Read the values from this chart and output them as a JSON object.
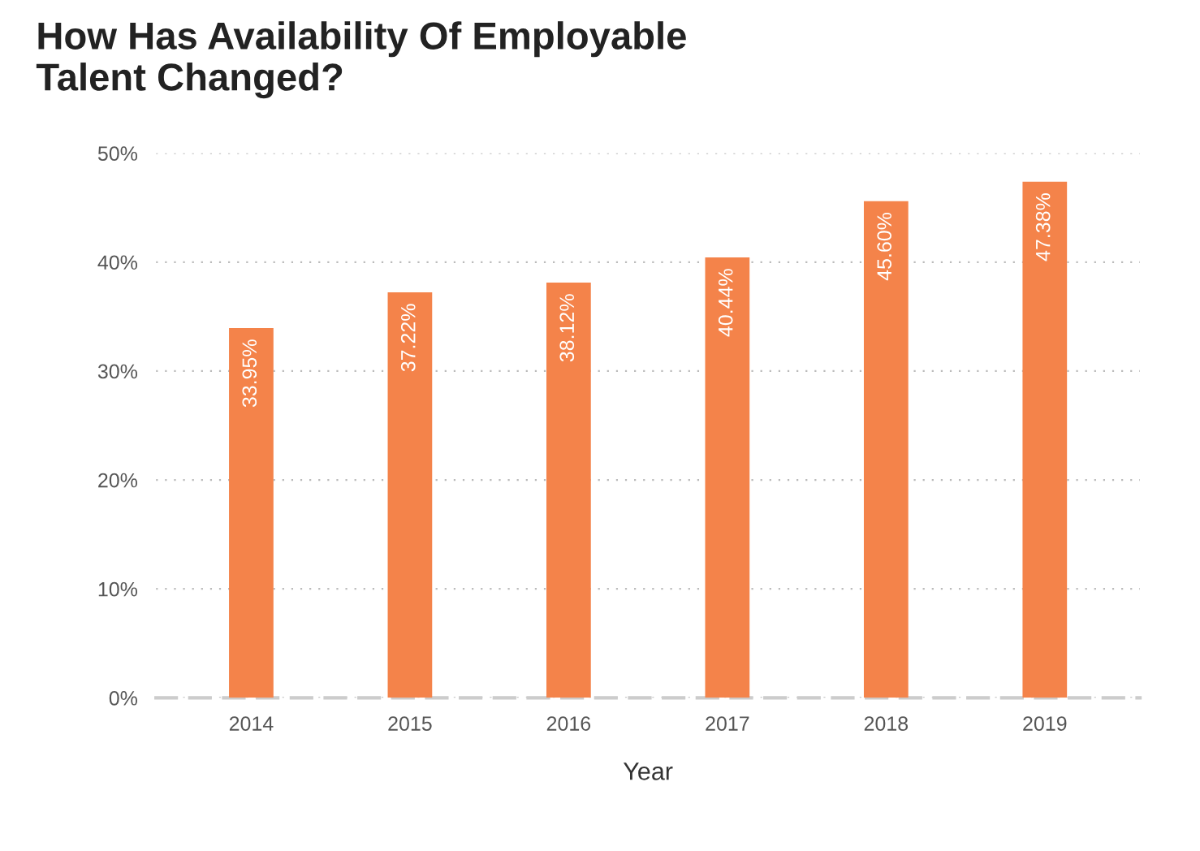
{
  "chart_data": {
    "type": "bar",
    "title": "How Has Availability Of Employable\nTalent Changed?",
    "xlabel": "Year",
    "categories": [
      "2014",
      "2015",
      "2016",
      "2017",
      "2018",
      "2019"
    ],
    "values": [
      33.95,
      37.22,
      38.12,
      40.44,
      45.6,
      47.38
    ],
    "value_labels": [
      "33.95%",
      "37.22%",
      "38.12%",
      "40.44%",
      "45.60%",
      "47.38%"
    ],
    "color": "#f4834a",
    "ylim": [
      0,
      50
    ],
    "yticks": [
      {
        "value": 0,
        "label": "0%"
      },
      {
        "value": 10,
        "label": "10%"
      },
      {
        "value": 20,
        "label": "20%"
      },
      {
        "value": 30,
        "label": "30%"
      },
      {
        "value": 40,
        "label": "40%"
      },
      {
        "value": 50,
        "label": "50%"
      }
    ],
    "grid": "y"
  }
}
